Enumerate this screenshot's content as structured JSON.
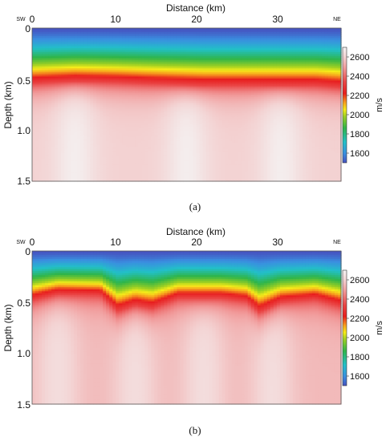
{
  "chart_data": [
    {
      "type": "heatmap",
      "caption": "(a)",
      "xlabel": "Distance (km)",
      "ylabel": "Depth (km)",
      "left_label": "SW",
      "right_label": "NE",
      "x_ticks": [
        0,
        10,
        20,
        30
      ],
      "y_ticks": [
        "0",
        "0.5",
        "1.0",
        "1.5"
      ],
      "xlim": [
        0,
        36
      ],
      "ylim": [
        0,
        1.5
      ],
      "colorbar": {
        "unit": "m/s",
        "ticks": [
          1600,
          1800,
          2000,
          2200,
          2400,
          2600
        ],
        "range": [
          1500,
          2700
        ]
      },
      "velocity_model": {
        "surface_velocity": 1500,
        "horizon_depth_profile": {
          "x": [
            0,
            5,
            10,
            13,
            20,
            26,
            29,
            33,
            36
          ],
          "depth": [
            0.54,
            0.52,
            0.53,
            0.54,
            0.56,
            0.56,
            0.56,
            0.56,
            0.58
          ]
        },
        "deep_velocity": {
          "mean": 2600,
          "bright_zones_x": [
            5,
            18,
            29
          ]
        }
      }
    },
    {
      "type": "heatmap",
      "caption": "(b)",
      "xlabel": "Distance (km)",
      "ylabel": "Depth (km)",
      "left_label": "SW",
      "right_label": "NE",
      "x_ticks": [
        0,
        10,
        20,
        30
      ],
      "y_ticks": [
        "0",
        "0.5",
        "1.0",
        "1.5"
      ],
      "xlim": [
        0,
        36
      ],
      "ylim": [
        0,
        1.5
      ],
      "colorbar": {
        "unit": "m/s",
        "ticks": [
          1600,
          1800,
          2000,
          2200,
          2400,
          2600
        ],
        "range": [
          1500,
          2700
        ]
      },
      "velocity_model": {
        "surface_velocity": 1500,
        "horizon_depth_profile": {
          "x": [
            0,
            3,
            8,
            10,
            12,
            14,
            17,
            22,
            25,
            26.5,
            29,
            33,
            36
          ],
          "depth": [
            0.48,
            0.42,
            0.43,
            0.59,
            0.53,
            0.56,
            0.46,
            0.46,
            0.49,
            0.6,
            0.5,
            0.47,
            0.54
          ]
        },
        "deep_velocity": {
          "mean": 2550,
          "bright_zones_x": [
            3,
            12,
            20,
            28
          ]
        }
      }
    }
  ]
}
